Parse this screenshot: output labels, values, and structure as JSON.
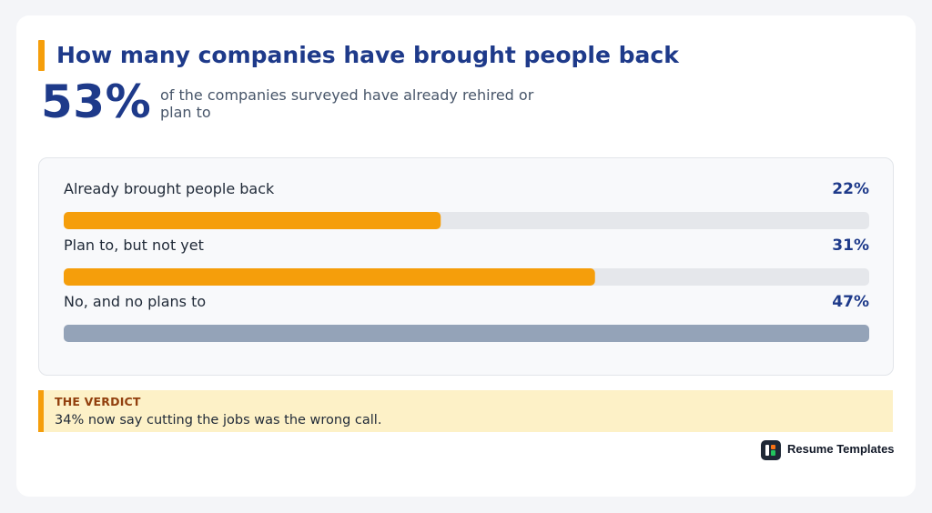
{
  "header": {
    "title": "How many companies have brought people back"
  },
  "headline": {
    "stat": "53%",
    "description": "of the companies surveyed have already rehired or plan to"
  },
  "chart_data": {
    "type": "bar",
    "orientation": "horizontal",
    "categories": [
      "Already brought people back",
      "Plan to, but not yet",
      "No, and no plans to"
    ],
    "values": [
      22,
      31,
      47
    ],
    "value_labels": [
      "22%",
      "31%",
      "47%"
    ],
    "colors": [
      "#f59e0b",
      "#f59e0b",
      "#94a3b8"
    ],
    "track_color": "#e5e7eb",
    "xlim": [
      0,
      47
    ]
  },
  "verdict": {
    "label": "THE VERDICT",
    "text": "34% now say cutting the jobs was the wrong call."
  },
  "brand": {
    "name": "Resume Templates",
    "icon": "resume-templates-logo"
  },
  "colors": {
    "accent": "#f59e0b",
    "title": "#1e3a8a",
    "muted_bar": "#94a3b8",
    "verdict_bg": "#fdf1c7"
  }
}
